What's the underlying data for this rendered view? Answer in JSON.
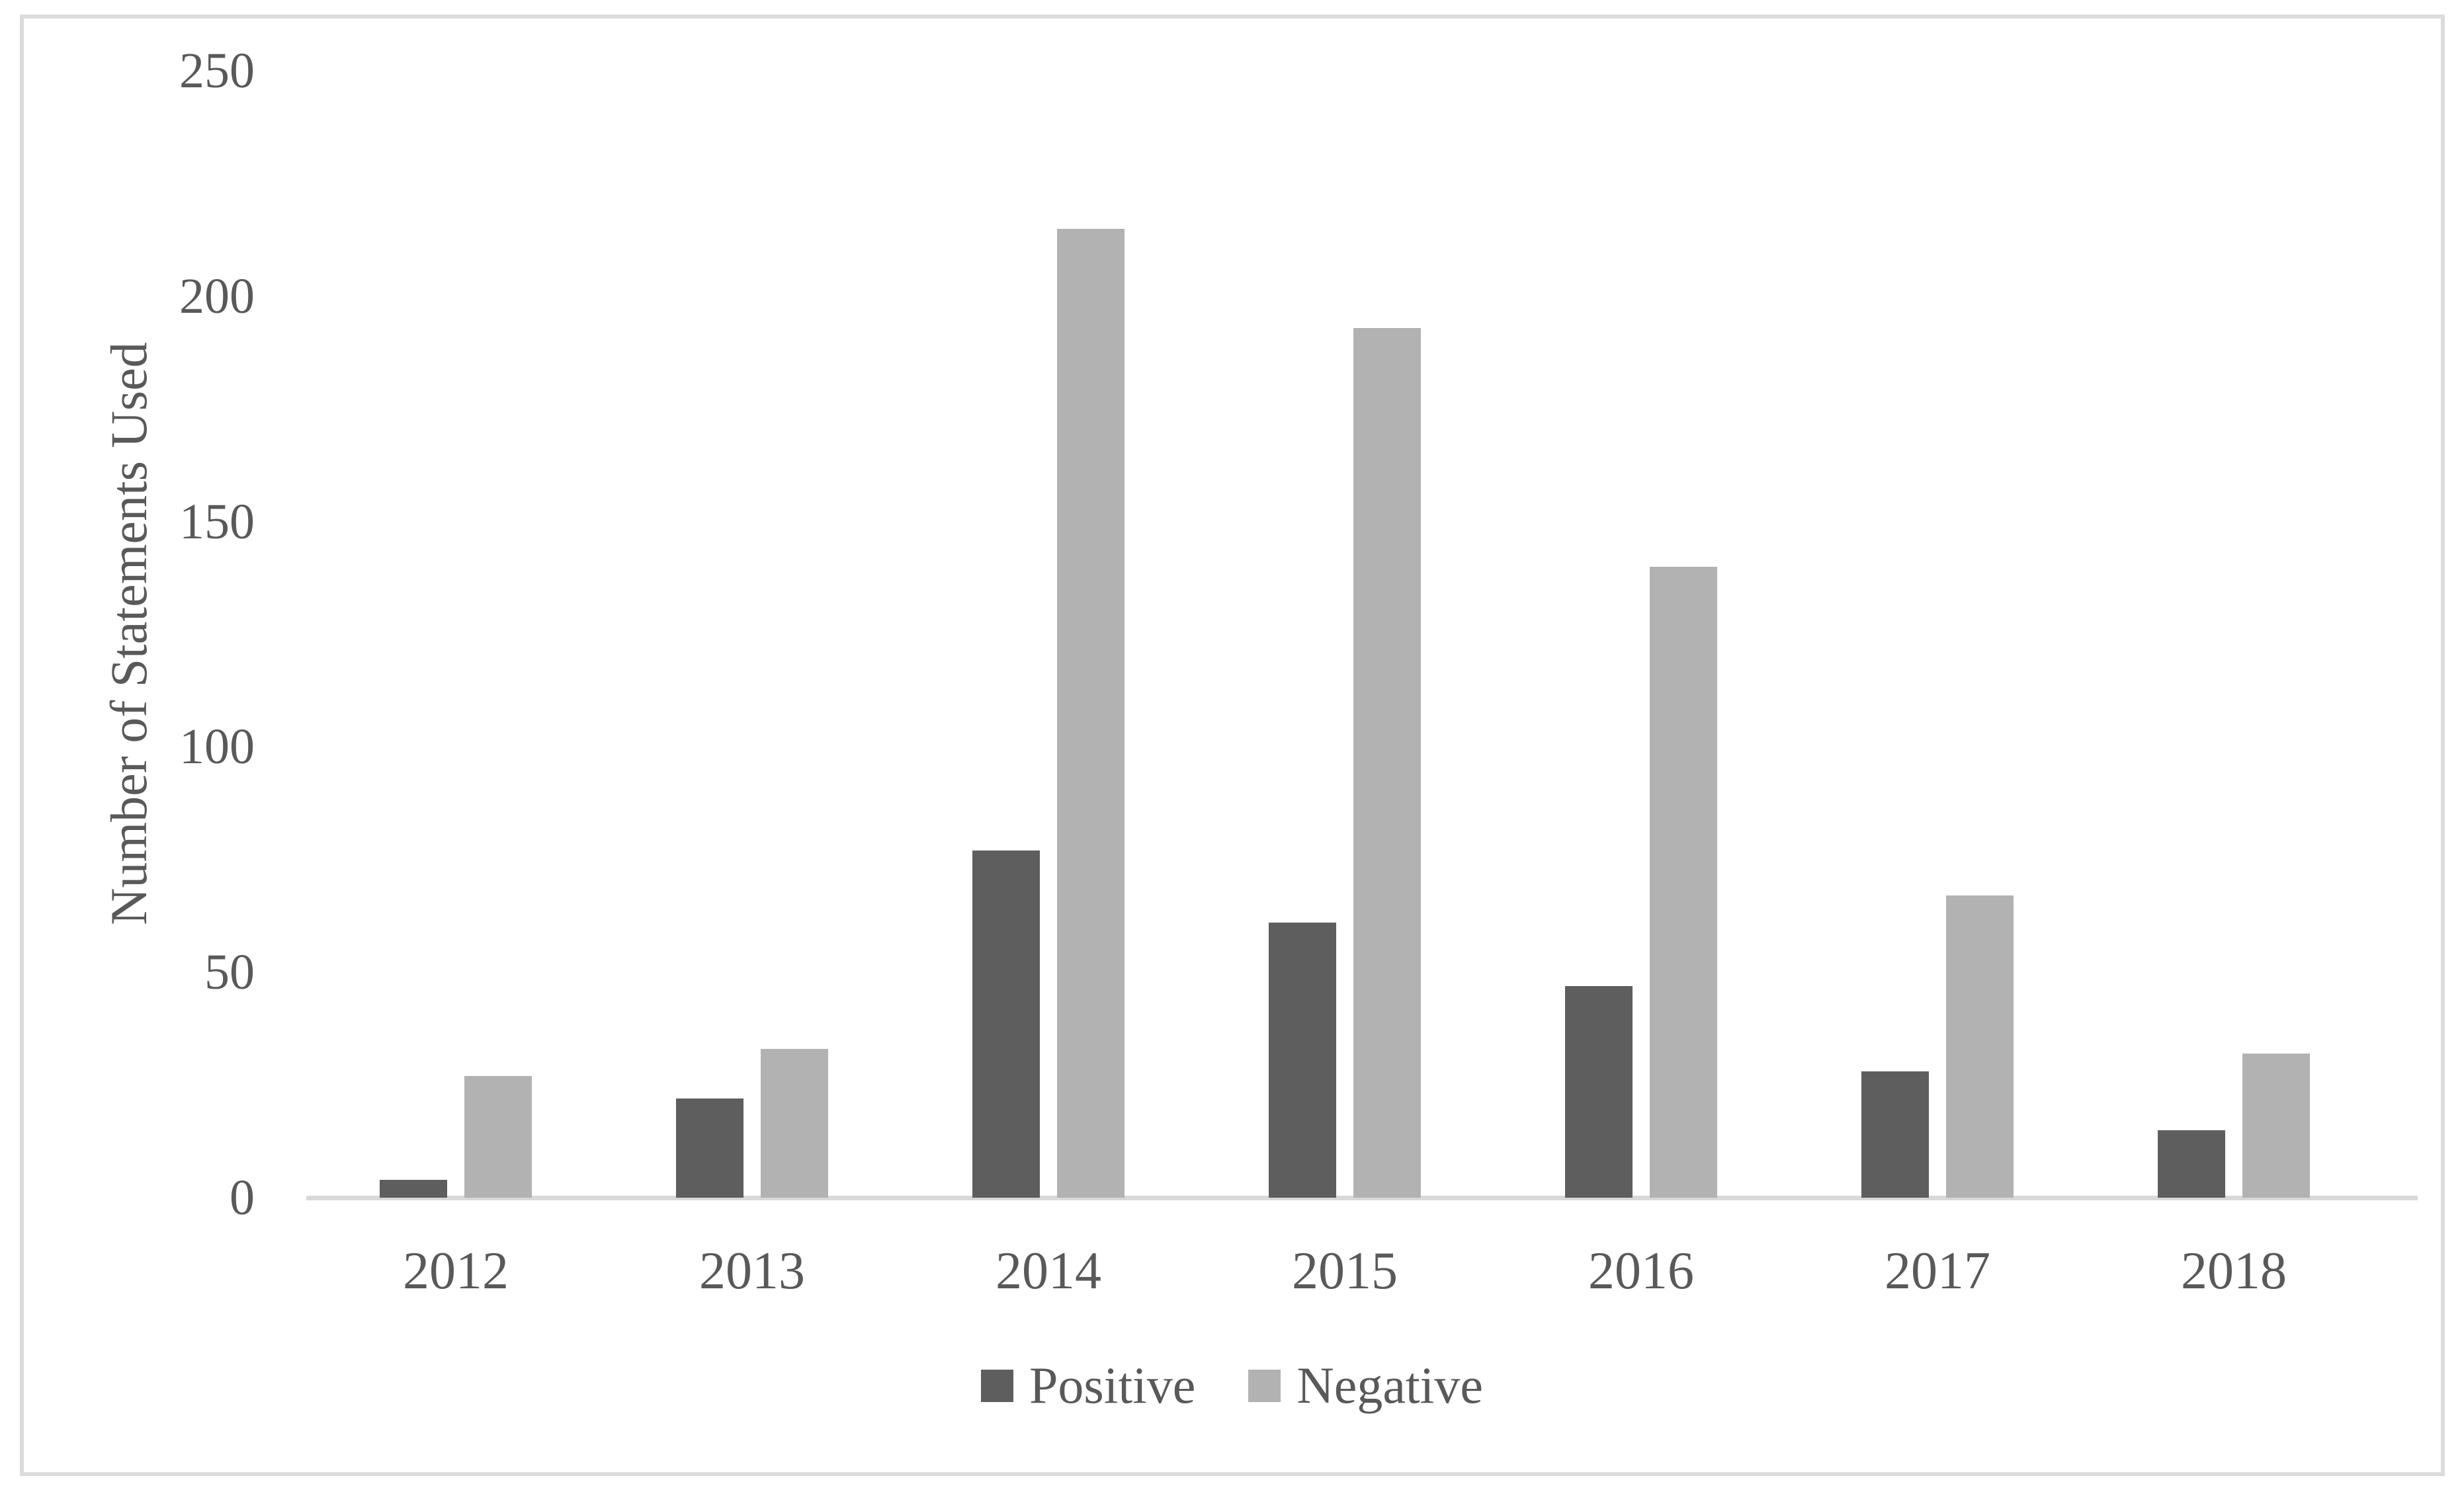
{
  "figure": {
    "ylabel": "Number of Statements Used",
    "colors": {
      "positive_bar": "#5e5e5e",
      "negative_bar": "#b2b2b2",
      "axis_line": "#d9d9d9",
      "frame_border": "#dcdcdc",
      "text": "#595959",
      "background": "#ffffff"
    }
  },
  "legend": {
    "items": [
      {
        "label": "Positive",
        "color": "#5e5e5e"
      },
      {
        "label": "Negative",
        "color": "#b2b2b2"
      }
    ]
  },
  "chart_data": {
    "type": "bar",
    "title": "",
    "categories": [
      "2012",
      "2013",
      "2014",
      "2015",
      "2016",
      "2017",
      "2018"
    ],
    "series": [
      {
        "name": "Positive",
        "color": "#5e5e5e",
        "values": [
          4,
          22,
          77,
          61,
          47,
          28,
          15
        ]
      },
      {
        "name": "Negative",
        "color": "#b2b2b2",
        "values": [
          27,
          33,
          215,
          193,
          140,
          67,
          32
        ]
      }
    ],
    "xlabel": "",
    "ylabel": "Number of Statements Used",
    "ylim": [
      0,
      250
    ],
    "yticks": [
      0,
      50,
      100,
      150,
      200,
      250
    ],
    "grid": false,
    "legend_position": "bottom"
  }
}
